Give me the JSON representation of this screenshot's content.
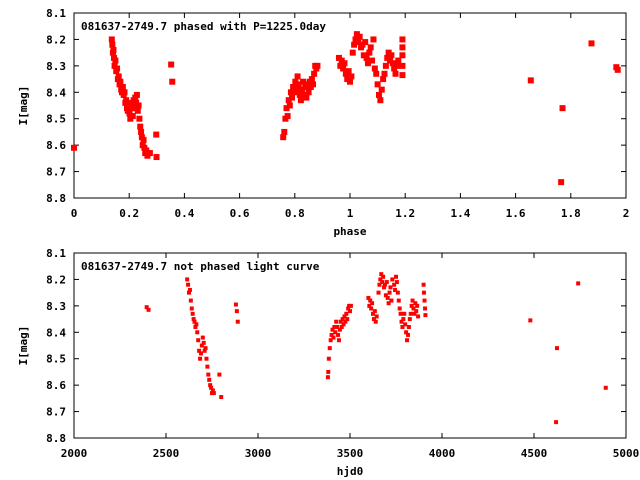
{
  "chart_data": [
    {
      "type": "scatter",
      "title": "081637-2749.7 phased with P=1225.0day",
      "xlabel": "phase",
      "ylabel": "I[mag]",
      "xlim": [
        0,
        2
      ],
      "ylim": [
        8.1,
        8.8
      ],
      "y_inverted": true,
      "xticks": [
        "0",
        "0.2",
        "0.4",
        "0.6",
        "0.8",
        "1",
        "1.2",
        "1.4",
        "1.6",
        "1.8",
        "2"
      ],
      "yticks": [
        "8.1",
        "8.2",
        "8.3",
        "8.4",
        "8.5",
        "8.6",
        "8.7",
        "8.8"
      ],
      "marker_color": "#ff0000",
      "series": [
        {
          "points": [
            [
              0.0,
              8.61
            ],
            [
              0.137,
              8.2
            ],
            [
              0.139,
              8.22
            ],
            [
              0.141,
              8.25
            ],
            [
              0.143,
              8.24
            ],
            [
              0.145,
              8.27
            ],
            [
              0.147,
              8.3
            ],
            [
              0.15,
              8.28
            ],
            [
              0.153,
              8.32
            ],
            [
              0.156,
              8.31
            ],
            [
              0.159,
              8.35
            ],
            [
              0.162,
              8.34
            ],
            [
              0.165,
              8.37
            ],
            [
              0.168,
              8.36
            ],
            [
              0.171,
              8.39
            ],
            [
              0.174,
              8.4
            ],
            [
              0.177,
              8.38
            ],
            [
              0.18,
              8.41
            ],
            [
              0.183,
              8.4
            ],
            [
              0.186,
              8.44
            ],
            [
              0.189,
              8.43
            ],
            [
              0.192,
              8.46
            ],
            [
              0.195,
              8.47
            ],
            [
              0.198,
              8.45
            ],
            [
              0.201,
              8.48
            ],
            [
              0.204,
              8.5
            ],
            [
              0.207,
              8.46
            ],
            [
              0.21,
              8.44
            ],
            [
              0.213,
              8.49
            ],
            [
              0.216,
              8.43
            ],
            [
              0.219,
              8.46
            ],
            [
              0.222,
              8.42
            ],
            [
              0.225,
              8.44
            ],
            [
              0.228,
              8.41
            ],
            [
              0.231,
              8.47
            ],
            [
              0.234,
              8.45
            ],
            [
              0.237,
              8.5
            ],
            [
              0.24,
              8.53
            ],
            [
              0.243,
              8.55
            ],
            [
              0.246,
              8.57
            ],
            [
              0.249,
              8.6
            ],
            [
              0.252,
              8.58
            ],
            [
              0.255,
              8.61
            ],
            [
              0.258,
              8.63
            ],
            [
              0.262,
              8.62
            ],
            [
              0.266,
              8.64
            ],
            [
              0.27,
              8.63
            ],
            [
              0.275,
              8.63
            ],
            [
              0.298,
              8.56
            ],
            [
              0.299,
              8.645
            ],
            [
              0.352,
              8.295
            ],
            [
              0.356,
              8.36
            ],
            [
              0.758,
              8.57
            ],
            [
              0.762,
              8.55
            ],
            [
              0.766,
              8.5
            ],
            [
              0.77,
              8.46
            ],
            [
              0.774,
              8.49
            ],
            [
              0.778,
              8.43
            ],
            [
              0.782,
              8.45
            ],
            [
              0.786,
              8.4
            ],
            [
              0.79,
              8.42
            ],
            [
              0.794,
              8.38
            ],
            [
              0.798,
              8.4
            ],
            [
              0.802,
              8.36
            ],
            [
              0.806,
              8.39
            ],
            [
              0.81,
              8.34
            ],
            [
              0.814,
              8.37
            ],
            [
              0.818,
              8.41
            ],
            [
              0.822,
              8.43
            ],
            [
              0.826,
              8.39
            ],
            [
              0.83,
              8.36
            ],
            [
              0.834,
              8.41
            ],
            [
              0.838,
              8.38
            ],
            [
              0.842,
              8.42
            ],
            [
              0.846,
              8.37
            ],
            [
              0.85,
              8.4
            ],
            [
              0.854,
              8.36
            ],
            [
              0.858,
              8.38
            ],
            [
              0.862,
              8.35
            ],
            [
              0.866,
              8.37
            ],
            [
              0.87,
              8.33
            ],
            [
              0.874,
              8.3
            ],
            [
              0.878,
              8.31
            ],
            [
              0.882,
              8.3
            ],
            [
              0.96,
              8.27
            ],
            [
              0.965,
              8.3
            ],
            [
              0.97,
              8.28
            ],
            [
              0.975,
              8.31
            ],
            [
              0.98,
              8.29
            ],
            [
              0.985,
              8.33
            ],
            [
              0.99,
              8.35
            ],
            [
              0.995,
              8.32
            ],
            [
              1.0,
              8.36
            ],
            [
              1.005,
              8.34
            ],
            [
              1.01,
              8.25
            ],
            [
              1.015,
              8.22
            ],
            [
              1.02,
              8.2
            ],
            [
              1.025,
              8.18
            ],
            [
              1.03,
              8.21
            ],
            [
              1.035,
              8.19
            ],
            [
              1.04,
              8.23
            ],
            [
              1.045,
              8.22
            ],
            [
              1.05,
              8.26
            ],
            [
              1.055,
              8.21
            ],
            [
              1.06,
              8.27
            ],
            [
              1.065,
              8.29
            ],
            [
              1.07,
              8.25
            ],
            [
              1.075,
              8.23
            ],
            [
              1.08,
              8.28
            ],
            [
              1.085,
              8.2
            ],
            [
              1.09,
              8.31
            ],
            [
              1.095,
              8.33
            ],
            [
              1.1,
              8.37
            ],
            [
              1.105,
              8.41
            ],
            [
              1.11,
              8.43
            ],
            [
              1.115,
              8.39
            ],
            [
              1.12,
              8.35
            ],
            [
              1.125,
              8.33
            ],
            [
              1.13,
              8.3
            ],
            [
              1.135,
              8.27
            ],
            [
              1.14,
              8.25
            ],
            [
              1.145,
              8.28
            ],
            [
              1.15,
              8.26
            ],
            [
              1.155,
              8.29
            ],
            [
              1.16,
              8.31
            ],
            [
              1.165,
              8.33
            ],
            [
              1.17,
              8.3
            ],
            [
              1.175,
              8.28
            ],
            [
              1.19,
              8.2
            ],
            [
              1.19,
              8.23
            ],
            [
              1.19,
              8.26
            ],
            [
              1.19,
              8.3
            ],
            [
              1.19,
              8.335
            ],
            [
              1.655,
              8.355
            ],
            [
              1.765,
              8.74
            ],
            [
              1.77,
              8.46
            ],
            [
              1.875,
              8.215
            ],
            [
              1.965,
              8.305
            ],
            [
              1.97,
              8.315
            ]
          ]
        }
      ]
    },
    {
      "type": "scatter",
      "title": "081637-2749.7 not phased light curve",
      "xlabel": "hjd0",
      "ylabel": "I[mag]",
      "xlim": [
        2000,
        5000
      ],
      "ylim": [
        8.1,
        8.8
      ],
      "y_inverted": true,
      "xticks": [
        "2000",
        "2500",
        "3000",
        "3500",
        "4000",
        "4500",
        "5000"
      ],
      "yticks": [
        "8.1",
        "8.2",
        "8.3",
        "8.4",
        "8.5",
        "8.6",
        "8.7",
        "8.8"
      ],
      "marker_color": "#ff0000",
      "series": [
        {
          "points": [
            [
              2395,
              8.305
            ],
            [
              2405,
              8.315
            ],
            [
              2615,
              8.2
            ],
            [
              2620,
              8.22
            ],
            [
              2625,
              8.25
            ],
            [
              2630,
              8.24
            ],
            [
              2635,
              8.28
            ],
            [
              2640,
              8.31
            ],
            [
              2645,
              8.33
            ],
            [
              2650,
              8.35
            ],
            [
              2655,
              8.36
            ],
            [
              2660,
              8.38
            ],
            [
              2665,
              8.37
            ],
            [
              2670,
              8.4
            ],
            [
              2675,
              8.43
            ],
            [
              2680,
              8.47
            ],
            [
              2685,
              8.5
            ],
            [
              2690,
              8.48
            ],
            [
              2695,
              8.45
            ],
            [
              2700,
              8.42
            ],
            [
              2705,
              8.44
            ],
            [
              2710,
              8.47
            ],
            [
              2715,
              8.46
            ],
            [
              2720,
              8.5
            ],
            [
              2725,
              8.53
            ],
            [
              2730,
              8.56
            ],
            [
              2735,
              8.58
            ],
            [
              2740,
              8.6
            ],
            [
              2745,
              8.61
            ],
            [
              2750,
              8.63
            ],
            [
              2755,
              8.62
            ],
            [
              2760,
              8.63
            ],
            [
              2790,
              8.56
            ],
            [
              2800,
              8.645
            ],
            [
              2880,
              8.295
            ],
            [
              2885,
              8.32
            ],
            [
              2890,
              8.36
            ],
            [
              3380,
              8.57
            ],
            [
              3382,
              8.55
            ],
            [
              3385,
              8.5
            ],
            [
              3390,
              8.46
            ],
            [
              3395,
              8.43
            ],
            [
              3400,
              8.41
            ],
            [
              3405,
              8.39
            ],
            [
              3410,
              8.42
            ],
            [
              3415,
              8.38
            ],
            [
              3420,
              8.4
            ],
            [
              3425,
              8.36
            ],
            [
              3430,
              8.38
            ],
            [
              3435,
              8.41
            ],
            [
              3440,
              8.43
            ],
            [
              3445,
              8.39
            ],
            [
              3450,
              8.36
            ],
            [
              3455,
              8.38
            ],
            [
              3460,
              8.35
            ],
            [
              3465,
              8.37
            ],
            [
              3470,
              8.34
            ],
            [
              3475,
              8.36
            ],
            [
              3480,
              8.33
            ],
            [
              3485,
              8.35
            ],
            [
              3490,
              8.31
            ],
            [
              3495,
              8.3
            ],
            [
              3500,
              8.32
            ],
            [
              3505,
              8.3
            ],
            [
              3600,
              8.27
            ],
            [
              3605,
              8.3
            ],
            [
              3610,
              8.28
            ],
            [
              3615,
              8.31
            ],
            [
              3620,
              8.29
            ],
            [
              3625,
              8.33
            ],
            [
              3630,
              8.35
            ],
            [
              3635,
              8.32
            ],
            [
              3640,
              8.36
            ],
            [
              3645,
              8.34
            ],
            [
              3655,
              8.25
            ],
            [
              3660,
              8.22
            ],
            [
              3665,
              8.2
            ],
            [
              3670,
              8.18
            ],
            [
              3675,
              8.21
            ],
            [
              3680,
              8.19
            ],
            [
              3685,
              8.23
            ],
            [
              3690,
              8.22
            ],
            [
              3695,
              8.26
            ],
            [
              3700,
              8.21
            ],
            [
              3705,
              8.27
            ],
            [
              3710,
              8.29
            ],
            [
              3715,
              8.25
            ],
            [
              3720,
              8.23
            ],
            [
              3725,
              8.28
            ],
            [
              3730,
              8.2
            ],
            [
              3740,
              8.22
            ],
            [
              3745,
              8.24
            ],
            [
              3750,
              8.19
            ],
            [
              3755,
              8.21
            ],
            [
              3760,
              8.25
            ],
            [
              3765,
              8.28
            ],
            [
              3770,
              8.31
            ],
            [
              3775,
              8.33
            ],
            [
              3780,
              8.36
            ],
            [
              3785,
              8.38
            ],
            [
              3790,
              8.35
            ],
            [
              3795,
              8.33
            ],
            [
              3800,
              8.37
            ],
            [
              3805,
              8.4
            ],
            [
              3810,
              8.43
            ],
            [
              3815,
              8.41
            ],
            [
              3820,
              8.38
            ],
            [
              3825,
              8.35
            ],
            [
              3830,
              8.33
            ],
            [
              3835,
              8.3
            ],
            [
              3840,
              8.28
            ],
            [
              3845,
              8.31
            ],
            [
              3850,
              8.33
            ],
            [
              3855,
              8.29
            ],
            [
              3860,
              8.32
            ],
            [
              3865,
              8.3
            ],
            [
              3870,
              8.34
            ],
            [
              3900,
              8.22
            ],
            [
              3902,
              8.25
            ],
            [
              3905,
              8.28
            ],
            [
              3908,
              8.31
            ],
            [
              3910,
              8.335
            ],
            [
              4480,
              8.355
            ],
            [
              4620,
              8.74
            ],
            [
              4625,
              8.46
            ],
            [
              4740,
              8.215
            ],
            [
              4890,
              8.61
            ]
          ]
        }
      ]
    }
  ]
}
